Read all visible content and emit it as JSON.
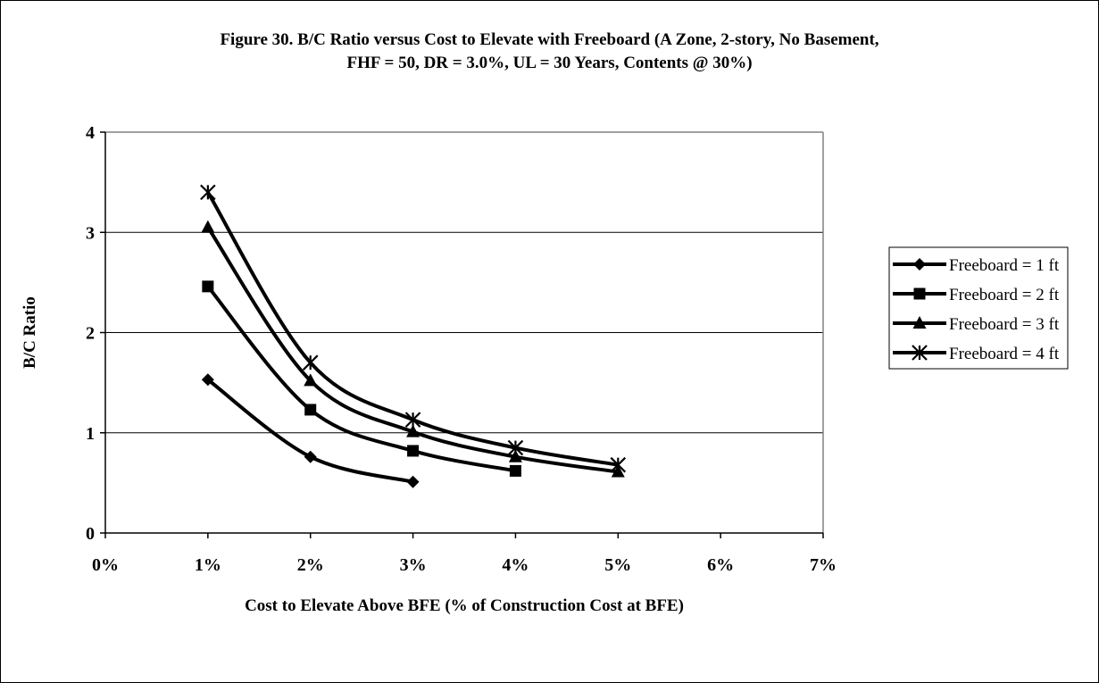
{
  "chart_data": {
    "type": "line",
    "title_lines": [
      "Figure 30. B/C Ratio versus Cost to Elevate with Freeboard (A Zone, 2-story, No Basement,",
      "FHF = 50, DR = 3.0%, UL = 30 Years, Contents @ 30%)"
    ],
    "xlabel": "Cost to Elevate Above BFE (% of Construction Cost at BFE)",
    "ylabel": "B/C Ratio",
    "xlim": [
      0,
      7
    ],
    "ylim": [
      0,
      4
    ],
    "x_ticks": [
      0,
      1,
      2,
      3,
      4,
      5,
      6,
      7
    ],
    "x_tick_labels": [
      "0%",
      "1%",
      "2%",
      "3%",
      "4%",
      "5%",
      "6%",
      "7%"
    ],
    "y_ticks": [
      0,
      1,
      2,
      3,
      4
    ],
    "y_tick_labels": [
      "0",
      "1",
      "2",
      "3",
      "4"
    ],
    "grid": "horizontal",
    "legend_position": "right",
    "line_color": "#000000",
    "series": [
      {
        "name": "Freeboard = 1 ft",
        "marker": "diamond",
        "x": [
          1,
          2,
          3
        ],
        "y": [
          1.53,
          0.76,
          0.51
        ]
      },
      {
        "name": "Freeboard = 2 ft",
        "marker": "square",
        "x": [
          1,
          2,
          3,
          4
        ],
        "y": [
          2.46,
          1.23,
          0.82,
          0.62
        ]
      },
      {
        "name": "Freeboard = 3 ft",
        "marker": "triangle",
        "x": [
          1,
          2,
          3,
          4,
          5
        ],
        "y": [
          3.05,
          1.52,
          1.01,
          0.76,
          0.61
        ]
      },
      {
        "name": "Freeboard = 4 ft",
        "marker": "star",
        "x": [
          1,
          2,
          3,
          4,
          5
        ],
        "y": [
          3.4,
          1.7,
          1.13,
          0.85,
          0.68
        ]
      }
    ]
  }
}
